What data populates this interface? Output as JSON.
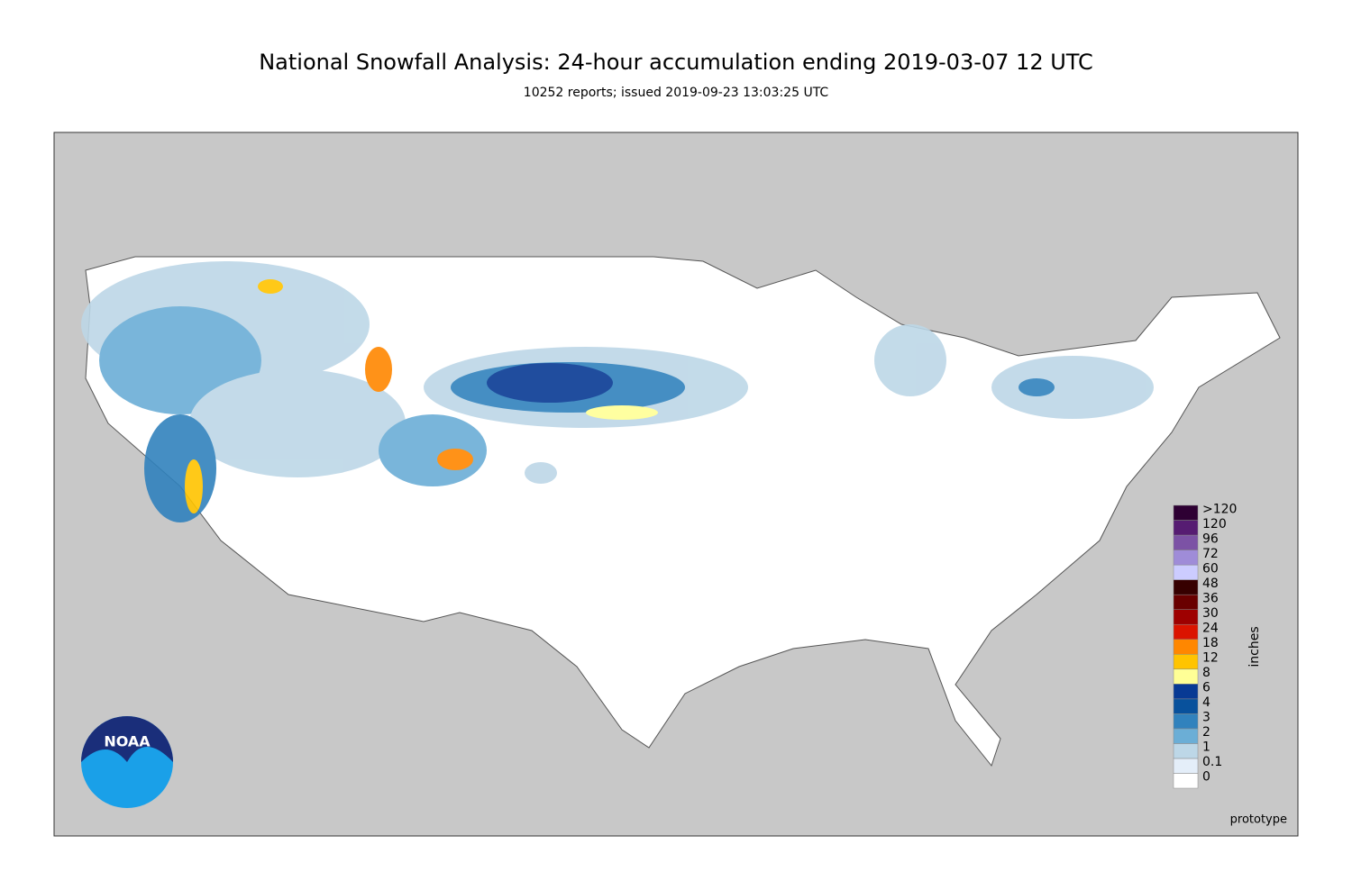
{
  "title": "National Snowfall Analysis: 24-hour accumulation ending 2019-03-07 12 UTC",
  "subtitle": "10252 reports; issued 2019-09-23 13:03:25 UTC",
  "logo_text": "NOAA",
  "footnote": "prototype",
  "colorbar": {
    "label": "inches",
    "levels": [
      0,
      0.1,
      1,
      2,
      3,
      4,
      6,
      8,
      12,
      18,
      24,
      30,
      36,
      48,
      60,
      72,
      96,
      120
    ],
    "overflow_label": ">120",
    "colors": [
      "#ffffff",
      "#e4eef9",
      "#bdd7e7",
      "#6baed6",
      "#3182bd",
      "#08519c",
      "#083a94",
      "#ffff96",
      "#ffc400",
      "#ff8700",
      "#db1400",
      "#9e0000",
      "#690000",
      "#360000",
      "#ccccff",
      "#9f8cd8",
      "#7c52a5",
      "#561c72",
      "#2e0033"
    ]
  }
}
